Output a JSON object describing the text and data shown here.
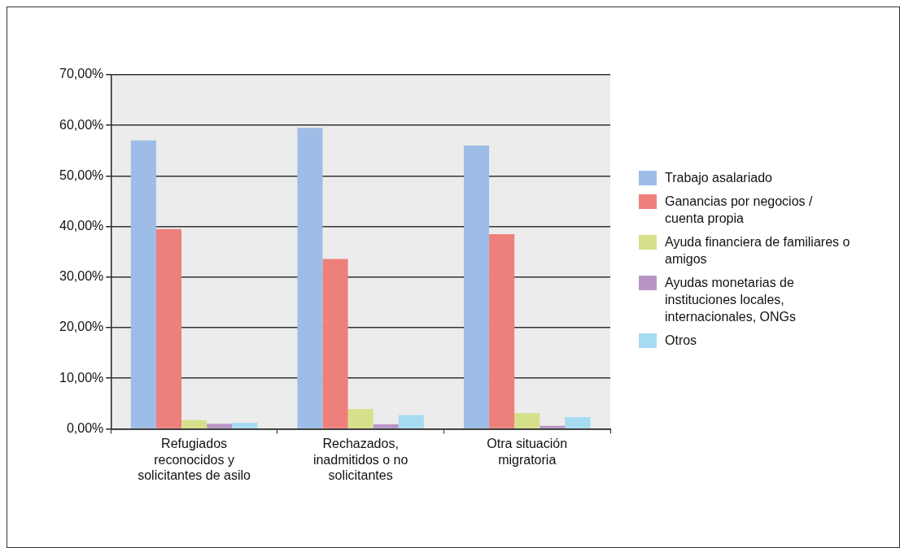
{
  "chart_data": {
    "type": "bar",
    "categories": [
      "Refugiados reconocidos y solicitantes de asilo",
      "Rechazados, inadmitidos o no solicitantes",
      "Otra situación migratoria"
    ],
    "series": [
      {
        "name": "Trabajo asalariado",
        "color": "#9ebde6",
        "values": [
          57.0,
          59.5,
          56.0
        ]
      },
      {
        "name": "Ganancias por negocios / cuenta propia",
        "color": "#ee807b",
        "values": [
          39.5,
          33.6,
          38.5
        ]
      },
      {
        "name": "Ayuda financiera de familiares o amigos",
        "color": "#d6e08a",
        "values": [
          1.7,
          3.9,
          3.1
        ]
      },
      {
        "name": "Ayudas monetarias de instituciones locales, internacionales, ONGs",
        "color": "#b995c6",
        "values": [
          1.0,
          0.9,
          0.6
        ]
      },
      {
        "name": "Otros",
        "color": "#a6dbf2",
        "values": [
          1.2,
          2.7,
          2.3
        ]
      }
    ],
    "ylim": [
      0,
      70
    ],
    "yticks": [
      {
        "value": 0,
        "label": "0,00%"
      },
      {
        "value": 10,
        "label": "10,00%"
      },
      {
        "value": 20,
        "label": "20,00%"
      },
      {
        "value": 30,
        "label": "30,00%"
      },
      {
        "value": 40,
        "label": "40,00%"
      },
      {
        "value": 50,
        "label": "50,00%"
      },
      {
        "value": 60,
        "label": "60,00%"
      },
      {
        "value": 70,
        "label": "70,00%"
      }
    ],
    "grid": "y",
    "legend": "right"
  }
}
